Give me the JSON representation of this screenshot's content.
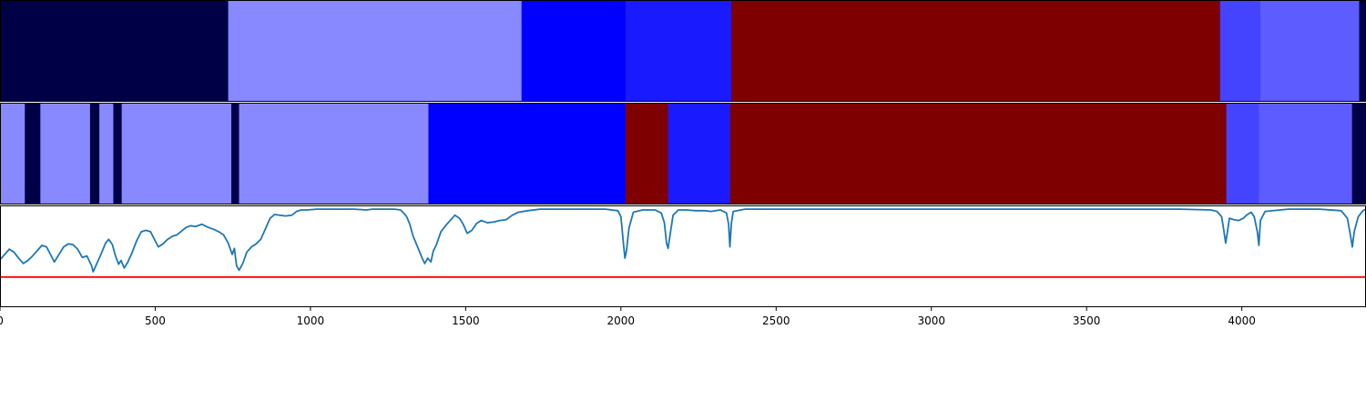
{
  "chart_data": {
    "type": "heatmap",
    "xlim": [
      0,
      4400
    ],
    "x_ticks": [
      0,
      500,
      1000,
      1500,
      2000,
      2500,
      3000,
      3500,
      4000
    ],
    "x_tick_labels": [
      "0",
      "500",
      "1000",
      "1500",
      "2000",
      "2500",
      "3000",
      "3500",
      "4000"
    ],
    "colors": {
      "c0": "#000047",
      "c1": "#8888ff",
      "c2": "#0000ff",
      "c3": "#1a1aff",
      "c4": "#7f0000",
      "c5": "#4444ff",
      "c6": "#5c5cff"
    },
    "segment_rows": [
      {
        "segments": [
          {
            "start": 0,
            "end": 735,
            "color": "c0"
          },
          {
            "start": 735,
            "end": 1680,
            "color": "c1"
          },
          {
            "start": 1680,
            "end": 2015,
            "color": "c2"
          },
          {
            "start": 2015,
            "end": 2355,
            "color": "c3"
          },
          {
            "start": 2355,
            "end": 3930,
            "color": "c4"
          },
          {
            "start": 3930,
            "end": 4060,
            "color": "c5"
          },
          {
            "start": 4060,
            "end": 4378,
            "color": "c6"
          },
          {
            "start": 4378,
            "end": 4400,
            "color": "c0"
          }
        ]
      },
      {
        "segments": [
          {
            "start": 0,
            "end": 80,
            "color": "c1"
          },
          {
            "start": 80,
            "end": 130,
            "color": "c0"
          },
          {
            "start": 130,
            "end": 290,
            "color": "c1"
          },
          {
            "start": 290,
            "end": 320,
            "color": "c0"
          },
          {
            "start": 320,
            "end": 365,
            "color": "c1"
          },
          {
            "start": 365,
            "end": 392,
            "color": "c0"
          },
          {
            "start": 392,
            "end": 745,
            "color": "c1"
          },
          {
            "start": 745,
            "end": 770,
            "color": "c0"
          },
          {
            "start": 770,
            "end": 1380,
            "color": "c1"
          },
          {
            "start": 1380,
            "end": 2015,
            "color": "c2"
          },
          {
            "start": 2015,
            "end": 2152,
            "color": "c4"
          },
          {
            "start": 2152,
            "end": 2352,
            "color": "c3"
          },
          {
            "start": 2352,
            "end": 3950,
            "color": "c4"
          },
          {
            "start": 3950,
            "end": 4055,
            "color": "c5"
          },
          {
            "start": 4055,
            "end": 4355,
            "color": "c6"
          },
          {
            "start": 4355,
            "end": 4400,
            "color": "c0"
          }
        ]
      }
    ],
    "line": {
      "color": "#1f77b4",
      "ylim": [
        -1.3,
        0.05
      ],
      "threshold": {
        "value": -0.9,
        "color": "#ff0000"
      },
      "points": [
        [
          0,
          -0.67
        ],
        [
          15,
          -0.6
        ],
        [
          30,
          -0.53
        ],
        [
          45,
          -0.57
        ],
        [
          60,
          -0.65
        ],
        [
          75,
          -0.72
        ],
        [
          90,
          -0.68
        ],
        [
          105,
          -0.62
        ],
        [
          120,
          -0.55
        ],
        [
          135,
          -0.48
        ],
        [
          150,
          -0.5
        ],
        [
          160,
          -0.58
        ],
        [
          175,
          -0.7
        ],
        [
          190,
          -0.6
        ],
        [
          205,
          -0.5
        ],
        [
          220,
          -0.46
        ],
        [
          235,
          -0.47
        ],
        [
          250,
          -0.53
        ],
        [
          265,
          -0.64
        ],
        [
          280,
          -0.62
        ],
        [
          295,
          -0.75
        ],
        [
          300,
          -0.83
        ],
        [
          312,
          -0.72
        ],
        [
          325,
          -0.6
        ],
        [
          340,
          -0.45
        ],
        [
          350,
          -0.4
        ],
        [
          362,
          -0.47
        ],
        [
          372,
          -0.62
        ],
        [
          382,
          -0.73
        ],
        [
          390,
          -0.68
        ],
        [
          400,
          -0.78
        ],
        [
          412,
          -0.7
        ],
        [
          425,
          -0.58
        ],
        [
          440,
          -0.42
        ],
        [
          455,
          -0.3
        ],
        [
          470,
          -0.28
        ],
        [
          485,
          -0.3
        ],
        [
          500,
          -0.42
        ],
        [
          510,
          -0.5
        ],
        [
          525,
          -0.46
        ],
        [
          540,
          -0.4
        ],
        [
          555,
          -0.36
        ],
        [
          570,
          -0.34
        ],
        [
          585,
          -0.29
        ],
        [
          600,
          -0.24
        ],
        [
          615,
          -0.22
        ],
        [
          630,
          -0.23
        ],
        [
          650,
          -0.2
        ],
        [
          670,
          -0.24
        ],
        [
          690,
          -0.27
        ],
        [
          705,
          -0.3
        ],
        [
          720,
          -0.34
        ],
        [
          735,
          -0.45
        ],
        [
          748,
          -0.6
        ],
        [
          755,
          -0.52
        ],
        [
          762,
          -0.75
        ],
        [
          770,
          -0.81
        ],
        [
          782,
          -0.72
        ],
        [
          795,
          -0.57
        ],
        [
          810,
          -0.5
        ],
        [
          825,
          -0.46
        ],
        [
          840,
          -0.4
        ],
        [
          855,
          -0.26
        ],
        [
          870,
          -0.12
        ],
        [
          885,
          -0.07
        ],
        [
          900,
          -0.08
        ],
        [
          920,
          -0.09
        ],
        [
          940,
          -0.08
        ],
        [
          955,
          -0.03
        ],
        [
          970,
          -0.01
        ],
        [
          990,
          -0.01
        ],
        [
          1020,
          0
        ],
        [
          1060,
          0
        ],
        [
          1100,
          0
        ],
        [
          1140,
          0
        ],
        [
          1180,
          -0.01
        ],
        [
          1200,
          0
        ],
        [
          1240,
          0
        ],
        [
          1270,
          0
        ],
        [
          1290,
          -0.01
        ],
        [
          1300,
          -0.05
        ],
        [
          1310,
          -0.1
        ],
        [
          1320,
          -0.2
        ],
        [
          1330,
          -0.35
        ],
        [
          1340,
          -0.45
        ],
        [
          1350,
          -0.55
        ],
        [
          1360,
          -0.65
        ],
        [
          1368,
          -0.72
        ],
        [
          1378,
          -0.65
        ],
        [
          1388,
          -0.7
        ],
        [
          1396,
          -0.55
        ],
        [
          1405,
          -0.48
        ],
        [
          1420,
          -0.3
        ],
        [
          1435,
          -0.22
        ],
        [
          1450,
          -0.15
        ],
        [
          1465,
          -0.08
        ],
        [
          1480,
          -0.12
        ],
        [
          1492,
          -0.2
        ],
        [
          1505,
          -0.32
        ],
        [
          1520,
          -0.28
        ],
        [
          1535,
          -0.19
        ],
        [
          1550,
          -0.15
        ],
        [
          1570,
          -0.18
        ],
        [
          1590,
          -0.17
        ],
        [
          1610,
          -0.15
        ],
        [
          1630,
          -0.14
        ],
        [
          1650,
          -0.08
        ],
        [
          1670,
          -0.04
        ],
        [
          1700,
          -0.02
        ],
        [
          1740,
          0
        ],
        [
          1800,
          0
        ],
        [
          1850,
          0
        ],
        [
          1900,
          0
        ],
        [
          1950,
          0
        ],
        [
          1990,
          -0.02
        ],
        [
          2000,
          -0.1
        ],
        [
          2008,
          -0.45
        ],
        [
          2013,
          -0.65
        ],
        [
          2018,
          -0.55
        ],
        [
          2026,
          -0.25
        ],
        [
          2040,
          -0.04
        ],
        [
          2070,
          -0.01
        ],
        [
          2110,
          -0.01
        ],
        [
          2130,
          -0.05
        ],
        [
          2140,
          -0.18
        ],
        [
          2147,
          -0.45
        ],
        [
          2152,
          -0.52
        ],
        [
          2158,
          -0.35
        ],
        [
          2168,
          -0.08
        ],
        [
          2185,
          -0.01
        ],
        [
          2210,
          -0.01
        ],
        [
          2240,
          -0.02
        ],
        [
          2270,
          -0.02
        ],
        [
          2290,
          -0.03
        ],
        [
          2320,
          -0.01
        ],
        [
          2340,
          -0.05
        ],
        [
          2347,
          -0.2
        ],
        [
          2351,
          -0.5
        ],
        [
          2356,
          -0.18
        ],
        [
          2362,
          -0.03
        ],
        [
          2400,
          0
        ],
        [
          2600,
          0
        ],
        [
          2800,
          0
        ],
        [
          3000,
          0
        ],
        [
          3200,
          0
        ],
        [
          3400,
          0
        ],
        [
          3600,
          0
        ],
        [
          3800,
          0
        ],
        [
          3900,
          -0.01
        ],
        [
          3920,
          -0.03
        ],
        [
          3935,
          -0.1
        ],
        [
          3942,
          -0.28
        ],
        [
          3948,
          -0.45
        ],
        [
          3953,
          -0.32
        ],
        [
          3960,
          -0.12
        ],
        [
          3975,
          -0.14
        ],
        [
          3990,
          -0.15
        ],
        [
          4005,
          -0.12
        ],
        [
          4015,
          -0.08
        ],
        [
          4030,
          -0.04
        ],
        [
          4040,
          -0.1
        ],
        [
          4050,
          -0.3
        ],
        [
          4055,
          -0.48
        ],
        [
          4060,
          -0.15
        ],
        [
          4075,
          -0.03
        ],
        [
          4150,
          0
        ],
        [
          4250,
          0
        ],
        [
          4320,
          -0.02
        ],
        [
          4340,
          -0.12
        ],
        [
          4350,
          -0.35
        ],
        [
          4356,
          -0.5
        ],
        [
          4362,
          -0.3
        ],
        [
          4375,
          -0.1
        ],
        [
          4390,
          -0.02
        ],
        [
          4400,
          0
        ]
      ]
    }
  }
}
